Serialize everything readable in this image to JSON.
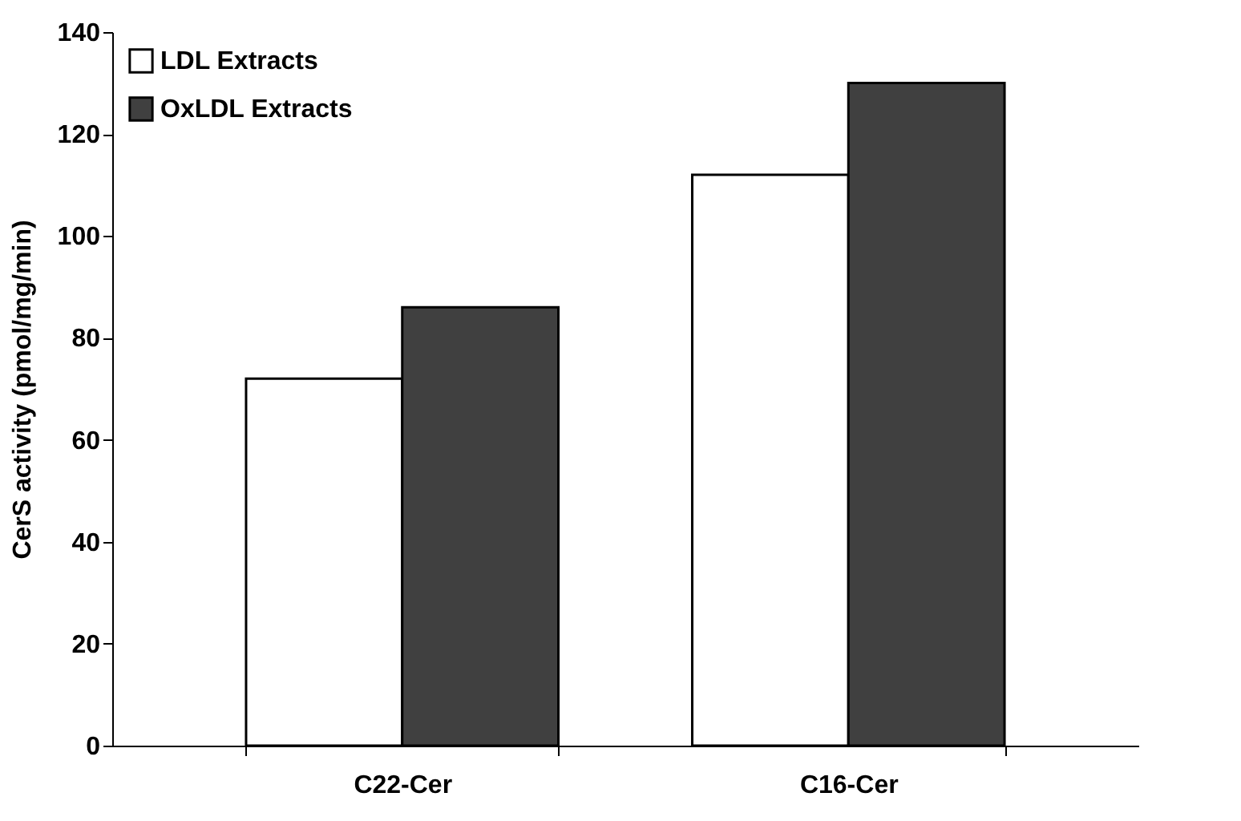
{
  "chart_data": {
    "type": "bar",
    "categories": [
      "C22-Cer",
      "C16-Cer"
    ],
    "ylabel": "CerS activity (pmol/mg/min)",
    "series": [
      {
        "name": "LDL Extracts",
        "color": "#ffffff",
        "values": [
          72,
          112
        ]
      },
      {
        "name": "OxLDL Extracts",
        "color": "#404040",
        "values": [
          86,
          130
        ]
      }
    ],
    "ylim": [
      0,
      140
    ],
    "yticks": [
      0,
      20,
      40,
      60,
      80,
      100,
      120,
      140
    ],
    "grid": false,
    "legend": "top left"
  }
}
